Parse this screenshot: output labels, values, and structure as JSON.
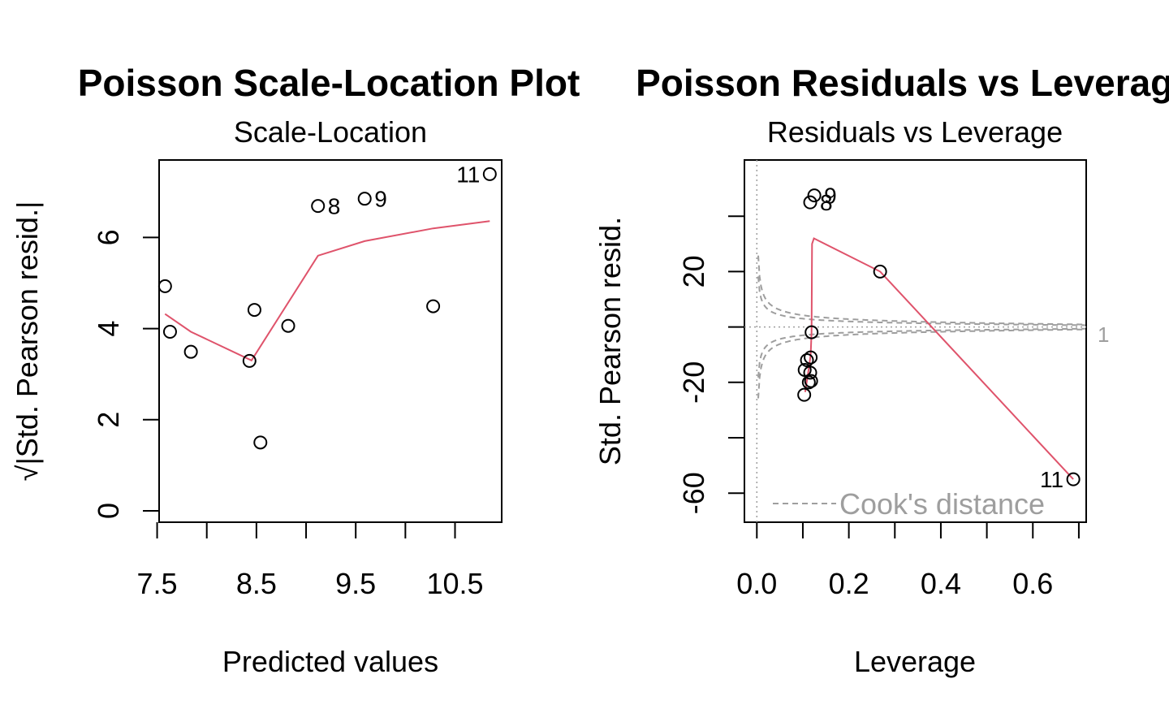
{
  "chart_data": [
    {
      "type": "scatter",
      "main_title": "Poisson Scale-Location Plot",
      "subtitle": "Scale-Location",
      "xlabel": "Predicted values",
      "ylabel": "√|Std. Pearson resid.|",
      "xlim": [
        7.52,
        10.97
      ],
      "ylim": [
        -0.25,
        7.7
      ],
      "xticks": [
        7.5,
        8.0,
        8.5,
        9.0,
        9.5,
        10.0,
        10.5
      ],
      "xtick_labels": [
        "7.5",
        "",
        "8.5",
        "",
        "9.5",
        "",
        "10.5"
      ],
      "yticks": [
        0,
        2,
        4,
        6
      ],
      "ytick_labels": [
        "0",
        "2",
        "4",
        "6"
      ],
      "points": [
        {
          "x": 7.58,
          "y": 4.93,
          "label": ""
        },
        {
          "x": 7.63,
          "y": 3.93,
          "label": ""
        },
        {
          "x": 7.84,
          "y": 3.49,
          "label": ""
        },
        {
          "x": 8.43,
          "y": 3.29,
          "label": ""
        },
        {
          "x": 8.48,
          "y": 4.41,
          "label": ""
        },
        {
          "x": 8.54,
          "y": 1.5,
          "label": ""
        },
        {
          "x": 8.82,
          "y": 4.06,
          "label": ""
        },
        {
          "x": 9.12,
          "y": 6.69,
          "label": "8"
        },
        {
          "x": 9.59,
          "y": 6.85,
          "label": "9"
        },
        {
          "x": 10.28,
          "y": 4.49,
          "label": ""
        },
        {
          "x": 10.85,
          "y": 7.39,
          "label": "11"
        }
      ],
      "smooth": [
        {
          "x": 7.58,
          "y": 4.32
        },
        {
          "x": 7.84,
          "y": 3.93
        },
        {
          "x": 8.45,
          "y": 3.3
        },
        {
          "x": 9.12,
          "y": 5.6
        },
        {
          "x": 9.59,
          "y": 5.92
        },
        {
          "x": 10.28,
          "y": 6.2
        },
        {
          "x": 10.85,
          "y": 6.36
        }
      ],
      "point_color": "#000000",
      "smooth_color": "#DF536B"
    },
    {
      "type": "scatter",
      "main_title": "Poisson Residuals vs Leverage",
      "subtitle": "Residuals vs Leverage",
      "xlabel": "Leverage",
      "ylabel": "Std. Pearson resid.",
      "xlim": [
        -0.027,
        0.716
      ],
      "ylim": [
        -70.5,
        60.3
      ],
      "xticks": [
        0.0,
        0.1,
        0.2,
        0.3,
        0.4,
        0.5,
        0.6,
        0.7
      ],
      "xtick_labels": [
        "0.0",
        "",
        "0.2",
        "",
        "0.4",
        "",
        "0.6",
        ""
      ],
      "yticks": [
        -60,
        -40,
        -20,
        0,
        20,
        40
      ],
      "ytick_labels": [
        "-60",
        "",
        "-20",
        "",
        "20",
        ""
      ],
      "points": [
        {
          "x": 0.103,
          "y": -24.5,
          "label": ""
        },
        {
          "x": 0.104,
          "y": -15.5,
          "label": ""
        },
        {
          "x": 0.109,
          "y": -12.0,
          "label": ""
        },
        {
          "x": 0.113,
          "y": -20.0,
          "label": ""
        },
        {
          "x": 0.116,
          "y": -16.5,
          "label": ""
        },
        {
          "x": 0.117,
          "y": -11.0,
          "label": ""
        },
        {
          "x": 0.118,
          "y": -19.5,
          "label": ""
        },
        {
          "x": 0.119,
          "y": -1.9,
          "label": ""
        },
        {
          "x": 0.116,
          "y": 45.0,
          "label": "8"
        },
        {
          "x": 0.125,
          "y": 47.5,
          "label": "9"
        },
        {
          "x": 0.268,
          "y": 20.0,
          "label": ""
        },
        {
          "x": 0.688,
          "y": -55.0,
          "label": "11"
        }
      ],
      "smooth": [
        {
          "x": 0.105,
          "y": -23.5
        },
        {
          "x": 0.113,
          "y": -15.0
        },
        {
          "x": 0.117,
          "y": -10.0
        },
        {
          "x": 0.119,
          "y": -1.9
        },
        {
          "x": 0.12,
          "y": 30.0
        },
        {
          "x": 0.124,
          "y": 32.0
        },
        {
          "x": 0.268,
          "y": 20.0
        },
        {
          "x": 0.688,
          "y": -55.0
        }
      ],
      "cooks_distance": {
        "label": "Cook's distance",
        "levels": [
          0.5,
          1
        ],
        "contour_label": "1",
        "color": "#9e9e9e"
      },
      "point_color": "#000000",
      "smooth_color": "#DF536B"
    }
  ]
}
